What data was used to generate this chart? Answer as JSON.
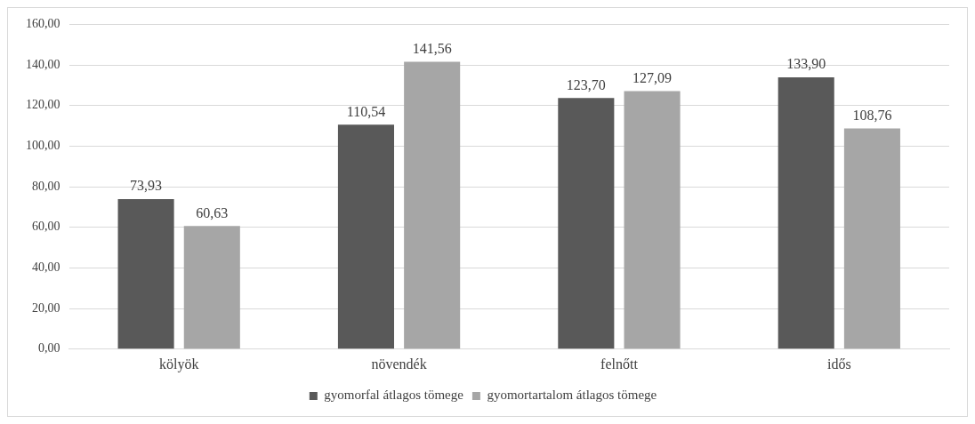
{
  "chart_data": {
    "type": "bar",
    "categories": [
      "kölyök",
      "növendék",
      "felnőtt",
      "idős"
    ],
    "series": [
      {
        "name": "gyomorfal átlagos tömege",
        "color": "#595959",
        "values": [
          73.93,
          110.54,
          123.7,
          133.9
        ],
        "value_labels": [
          "73,93",
          "110,54",
          "123,70",
          "133,90"
        ]
      },
      {
        "name": "gyomortartalom átlagos tömege",
        "color": "#a6a6a6",
        "values": [
          60.63,
          141.56,
          127.09,
          108.76
        ],
        "value_labels": [
          "60,63",
          "141,56",
          "127,09",
          "108,76"
        ]
      }
    ],
    "ylim": [
      0,
      160
    ],
    "yticks": [
      {
        "value": 0,
        "label": "0,00"
      },
      {
        "value": 20,
        "label": "20,00"
      },
      {
        "value": 40,
        "label": "40,00"
      },
      {
        "value": 60,
        "label": "60,00"
      },
      {
        "value": 80,
        "label": "80,00"
      },
      {
        "value": 100,
        "label": "100,00"
      },
      {
        "value": 120,
        "label": "120,00"
      },
      {
        "value": 140,
        "label": "140,00"
      },
      {
        "value": 160,
        "label": "160,00"
      }
    ],
    "grid": "y",
    "legend": "bottom"
  }
}
